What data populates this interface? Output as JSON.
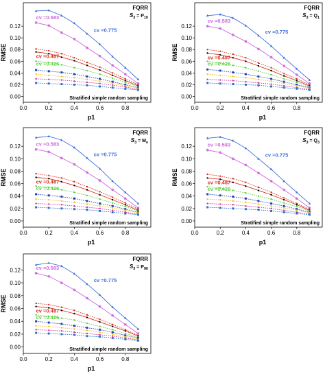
{
  "colors": {
    "blue_solid": "#3f6fd8",
    "magenta": "#cc66dd",
    "red": "#d62c1c",
    "green": "#5dcf3c",
    "blue_dark": "#1f3fb8",
    "blue_dotted": "#2d6fd0",
    "yellow": "#f0c020",
    "magenta_dotted": "#cc3399"
  },
  "chart_data": [
    {
      "type": "line",
      "title": "FQRR",
      "subtitle": {
        "prefix": "S",
        "prefix_sub": "3",
        "mid": " = P",
        "suffix_sub": "10"
      },
      "annotation": "Stratified simple random sampling",
      "xlabel": "p1",
      "ylabel": "RMSE",
      "xlim": [
        0.0,
        1.0
      ],
      "ylim": [
        -0.01,
        0.16
      ],
      "xticks": [
        "0.0",
        "0.2",
        "0.4",
        "0.6",
        "0.8"
      ],
      "yticks": [
        "0.00",
        "0.02",
        "0.04",
        "0.06",
        "0.08",
        "0.10",
        "0.12"
      ],
      "cv_labels": [
        "cv =0.775",
        "cv =0.583",
        "cv =0.487",
        "cv =0.426"
      ],
      "x": [
        0.1,
        0.2,
        0.3,
        0.4,
        0.5,
        0.6,
        0.7,
        0.8,
        0.9
      ],
      "series": [
        {
          "values": [
            0.146,
            0.147,
            0.138,
            0.125,
            0.107,
            0.089,
            0.068,
            0.049,
            0.029
          ]
        },
        {
          "values": [
            0.126,
            0.121,
            0.109,
            0.098,
            0.083,
            0.069,
            0.053,
            0.038,
            0.022
          ]
        },
        {
          "values": [
            0.081,
            0.078,
            0.073,
            0.066,
            0.058,
            0.05,
            0.04,
            0.03,
            0.02
          ]
        },
        {
          "values": [
            0.076,
            0.073,
            0.067,
            0.061,
            0.053,
            0.045,
            0.036,
            0.027,
            0.018
          ]
        },
        {
          "values": [
            0.06,
            0.058,
            0.054,
            0.049,
            0.044,
            0.038,
            0.031,
            0.024,
            0.017
          ]
        },
        {
          "values": [
            0.045,
            0.043,
            0.041,
            0.038,
            0.034,
            0.03,
            0.025,
            0.02,
            0.015
          ]
        },
        {
          "values": [
            0.038,
            0.036,
            0.034,
            0.032,
            0.029,
            0.026,
            0.022,
            0.018,
            0.014
          ]
        },
        {
          "values": [
            0.03,
            0.029,
            0.028,
            0.026,
            0.024,
            0.022,
            0.019,
            0.016,
            0.012
          ]
        },
        {
          "values": [
            0.023,
            0.022,
            0.021,
            0.02,
            0.019,
            0.017,
            0.015,
            0.013,
            0.011
          ]
        }
      ]
    },
    {
      "type": "line",
      "title": "FQRR",
      "subtitle": {
        "prefix": "S",
        "prefix_sub": "3",
        "mid": " = Q",
        "suffix_sub": "1"
      },
      "annotation": "Stratified simple random sampling",
      "xlabel": "p1",
      "ylabel": "RMSE",
      "xlim": [
        0.0,
        1.0
      ],
      "ylim": [
        -0.01,
        0.16
      ],
      "xticks": [
        "0.0",
        "0.2",
        "0.4",
        "0.6",
        "0.8"
      ],
      "yticks": [
        "0.00",
        "0.02",
        "0.04",
        "0.06",
        "0.08",
        "0.10",
        "0.12"
      ],
      "cv_labels": [
        "cv =0.775",
        "cv =0.583",
        "cv =0.487",
        "cv =0.426"
      ],
      "x": [
        0.1,
        0.2,
        0.3,
        0.4,
        0.5,
        0.6,
        0.7,
        0.8,
        0.9
      ],
      "series": [
        {
          "values": [
            0.138,
            0.14,
            0.134,
            0.121,
            0.104,
            0.086,
            0.066,
            0.047,
            0.028
          ]
        },
        {
          "values": [
            0.12,
            0.116,
            0.105,
            0.094,
            0.081,
            0.067,
            0.052,
            0.037,
            0.022
          ]
        },
        {
          "values": [
            0.08,
            0.077,
            0.072,
            0.066,
            0.057,
            0.049,
            0.039,
            0.03,
            0.02
          ]
        },
        {
          "values": [
            0.074,
            0.071,
            0.066,
            0.06,
            0.052,
            0.044,
            0.035,
            0.027,
            0.018
          ]
        },
        {
          "values": [
            0.06,
            0.057,
            0.053,
            0.049,
            0.043,
            0.037,
            0.03,
            0.024,
            0.017
          ]
        },
        {
          "values": [
            0.046,
            0.044,
            0.041,
            0.038,
            0.034,
            0.03,
            0.025,
            0.02,
            0.015
          ]
        },
        {
          "values": [
            0.038,
            0.036,
            0.034,
            0.032,
            0.029,
            0.026,
            0.022,
            0.018,
            0.014
          ]
        },
        {
          "values": [
            0.029,
            0.028,
            0.027,
            0.025,
            0.023,
            0.021,
            0.018,
            0.015,
            0.012
          ]
        },
        {
          "values": [
            0.023,
            0.022,
            0.021,
            0.02,
            0.019,
            0.017,
            0.015,
            0.013,
            0.011
          ]
        }
      ]
    },
    {
      "type": "line",
      "title": "FQRR",
      "subtitle": {
        "prefix": "S",
        "prefix_sub": "3",
        "mid": " = M",
        "suffix_sub": "e"
      },
      "annotation": "Stratified simple random sampling",
      "xlabel": "p1",
      "ylabel": "RMSE",
      "xlim": [
        0.0,
        1.0
      ],
      "ylim": [
        -0.01,
        0.15
      ],
      "xticks": [
        "0.0",
        "0.2",
        "0.4",
        "0.6",
        "0.8"
      ],
      "yticks": [
        "0.00",
        "0.02",
        "0.04",
        "0.06",
        "0.08",
        "0.10",
        "0.12"
      ],
      "cv_labels": [
        "cv =0.775",
        "cv =0.583",
        "cv =0.487",
        "cv =0.426"
      ],
      "x": [
        0.1,
        0.2,
        0.3,
        0.4,
        0.5,
        0.6,
        0.7,
        0.8,
        0.9
      ],
      "series": [
        {
          "values": [
            0.134,
            0.136,
            0.13,
            0.118,
            0.101,
            0.084,
            0.064,
            0.046,
            0.028
          ]
        },
        {
          "values": [
            0.115,
            0.111,
            0.101,
            0.091,
            0.078,
            0.065,
            0.05,
            0.036,
            0.021
          ]
        },
        {
          "values": [
            0.076,
            0.073,
            0.069,
            0.063,
            0.055,
            0.047,
            0.038,
            0.029,
            0.019
          ]
        },
        {
          "values": [
            0.07,
            0.068,
            0.063,
            0.057,
            0.05,
            0.042,
            0.034,
            0.026,
            0.017
          ]
        },
        {
          "values": [
            0.056,
            0.054,
            0.05,
            0.046,
            0.041,
            0.035,
            0.029,
            0.023,
            0.016
          ]
        },
        {
          "values": [
            0.043,
            0.041,
            0.039,
            0.036,
            0.032,
            0.028,
            0.024,
            0.019,
            0.014
          ]
        },
        {
          "values": [
            0.035,
            0.034,
            0.032,
            0.03,
            0.027,
            0.024,
            0.021,
            0.017,
            0.013
          ]
        },
        {
          "values": [
            0.028,
            0.027,
            0.026,
            0.024,
            0.022,
            0.02,
            0.017,
            0.014,
            0.011
          ]
        },
        {
          "values": [
            0.022,
            0.021,
            0.02,
            0.019,
            0.018,
            0.016,
            0.014,
            0.012,
            0.01
          ]
        }
      ]
    },
    {
      "type": "line",
      "title": "FQRR",
      "subtitle": {
        "prefix": "S",
        "prefix_sub": "3",
        "mid": " = Q",
        "suffix_sub": "3"
      },
      "annotation": "Stratified simple random sampling",
      "xlabel": "p1",
      "ylabel": "RMSE",
      "xlim": [
        0.0,
        1.0
      ],
      "ylim": [
        -0.01,
        0.15
      ],
      "xticks": [
        "0.0",
        "0.2",
        "0.4",
        "0.6",
        "0.8"
      ],
      "yticks": [
        "0.00",
        "0.02",
        "0.04",
        "0.06",
        "0.08",
        "0.10",
        "0.12"
      ],
      "cv_labels": [
        "cv =0.775",
        "cv =0.583",
        "cv =0.487",
        "cv =0.426"
      ],
      "x": [
        0.1,
        0.2,
        0.3,
        0.4,
        0.5,
        0.6,
        0.7,
        0.8,
        0.9
      ],
      "series": [
        {
          "values": [
            0.133,
            0.135,
            0.129,
            0.117,
            0.1,
            0.083,
            0.064,
            0.046,
            0.028
          ]
        },
        {
          "values": [
            0.114,
            0.11,
            0.1,
            0.09,
            0.077,
            0.064,
            0.05,
            0.036,
            0.021
          ]
        },
        {
          "values": [
            0.075,
            0.072,
            0.068,
            0.062,
            0.054,
            0.046,
            0.037,
            0.028,
            0.019
          ]
        },
        {
          "values": [
            0.069,
            0.067,
            0.062,
            0.056,
            0.049,
            0.042,
            0.034,
            0.026,
            0.017
          ]
        },
        {
          "values": [
            0.055,
            0.053,
            0.049,
            0.045,
            0.04,
            0.035,
            0.029,
            0.023,
            0.016
          ]
        },
        {
          "values": [
            0.043,
            0.041,
            0.039,
            0.036,
            0.032,
            0.028,
            0.024,
            0.019,
            0.014
          ]
        },
        {
          "values": [
            0.035,
            0.034,
            0.032,
            0.03,
            0.027,
            0.024,
            0.021,
            0.017,
            0.013
          ]
        },
        {
          "values": [
            0.028,
            0.027,
            0.026,
            0.024,
            0.022,
            0.02,
            0.017,
            0.014,
            0.011
          ]
        },
        {
          "values": [
            0.022,
            0.021,
            0.02,
            0.019,
            0.018,
            0.016,
            0.014,
            0.012,
            0.01
          ]
        }
      ]
    },
    {
      "type": "line",
      "title": "FQRR",
      "subtitle": {
        "prefix": "S",
        "prefix_sub": "3",
        "mid": " = P",
        "suffix_sub": "90"
      },
      "annotation": "Stratified simple random sampling",
      "xlabel": "p1",
      "ylabel": "RMSE",
      "xlim": [
        0.0,
        1.0
      ],
      "ylim": [
        -0.01,
        0.145
      ],
      "xticks": [
        "0.0",
        "0.2",
        "0.4",
        "0.6",
        "0.8"
      ],
      "yticks": [
        "0.00",
        "0.02",
        "0.04",
        "0.06",
        "0.08",
        "0.10",
        "0.12"
      ],
      "cv_labels": [
        "cv =0.775",
        "cv =0.583",
        "cv =0.487",
        "cv =0.426"
      ],
      "x": [
        0.1,
        0.2,
        0.3,
        0.4,
        0.5,
        0.6,
        0.7,
        0.8,
        0.9
      ],
      "series": [
        {
          "values": [
            0.128,
            0.131,
            0.126,
            0.114,
            0.098,
            0.081,
            0.062,
            0.045,
            0.028
          ]
        },
        {
          "values": [
            0.115,
            0.11,
            0.1,
            0.089,
            0.076,
            0.063,
            0.049,
            0.035,
            0.021
          ]
        },
        {
          "values": [
            0.068,
            0.066,
            0.062,
            0.057,
            0.05,
            0.043,
            0.035,
            0.027,
            0.018
          ]
        },
        {
          "values": [
            0.063,
            0.061,
            0.057,
            0.052,
            0.046,
            0.039,
            0.032,
            0.025,
            0.017
          ]
        },
        {
          "values": [
            0.05,
            0.048,
            0.045,
            0.042,
            0.037,
            0.032,
            0.027,
            0.021,
            0.015
          ]
        },
        {
          "values": [
            0.04,
            0.038,
            0.036,
            0.033,
            0.03,
            0.027,
            0.023,
            0.018,
            0.014
          ]
        },
        {
          "values": [
            0.033,
            0.032,
            0.03,
            0.028,
            0.026,
            0.023,
            0.02,
            0.016,
            0.012
          ]
        },
        {
          "values": [
            0.027,
            0.026,
            0.025,
            0.023,
            0.021,
            0.019,
            0.017,
            0.014,
            0.011
          ]
        },
        {
          "values": [
            0.022,
            0.021,
            0.02,
            0.019,
            0.017,
            0.016,
            0.014,
            0.012,
            0.01
          ]
        }
      ]
    }
  ]
}
